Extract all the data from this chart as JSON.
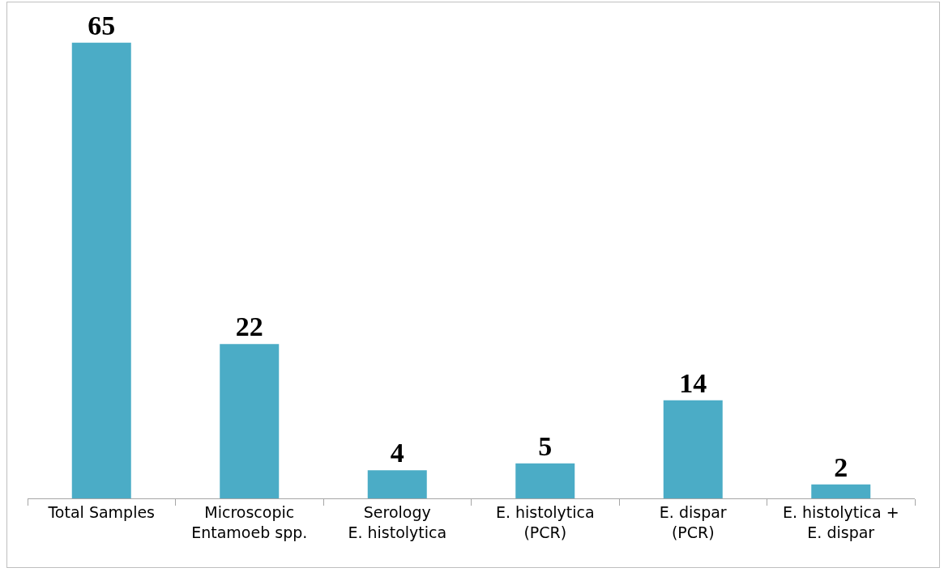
{
  "chart_data": {
    "type": "bar",
    "categories": [
      "Total Samples",
      "Microscopic\nEntamoeb spp.",
      "Serology\nE. histolytica",
      "E. histolytica\n(PCR)",
      "E. dispar\n(PCR)",
      "E. histolytica +\nE. dispar"
    ],
    "values": [
      65,
      22,
      4,
      5,
      14,
      2
    ],
    "color": "#4bacc6",
    "data_labels": true,
    "grid": false
  }
}
